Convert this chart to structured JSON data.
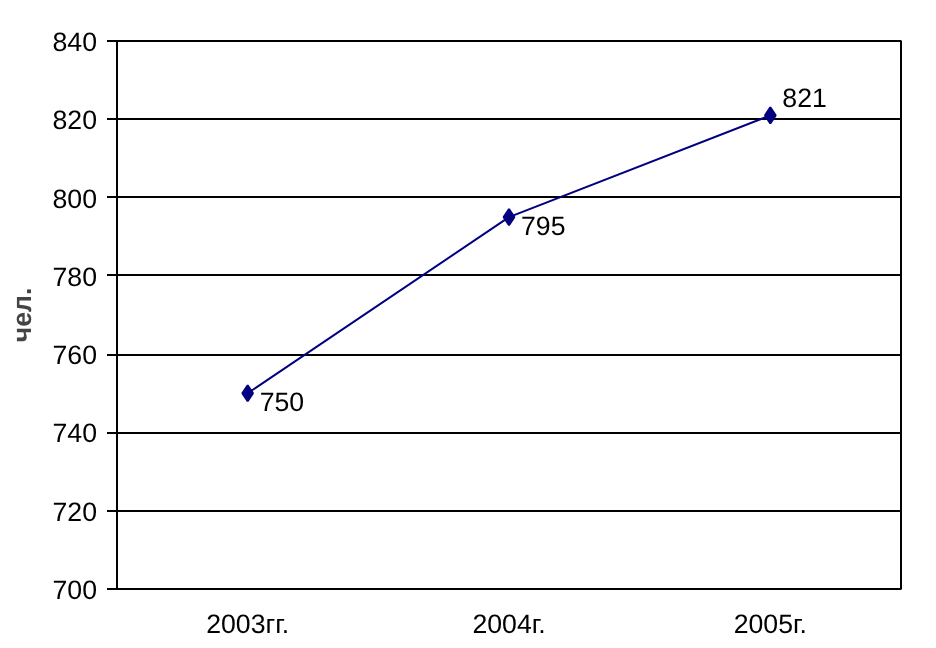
{
  "chart_data": {
    "type": "line",
    "ylabel": "чел.",
    "categories": [
      "2003гг.",
      "2004г.",
      "2005г."
    ],
    "series": [
      {
        "color": "#000080",
        "values": [
          750,
          795,
          821
        ]
      }
    ],
    "ylim": [
      700,
      840
    ],
    "yticks": [
      700,
      720,
      740,
      760,
      780,
      800,
      820,
      840
    ],
    "grid": "y",
    "marker": "diamond",
    "line_style": "solid",
    "data_labels": true
  }
}
